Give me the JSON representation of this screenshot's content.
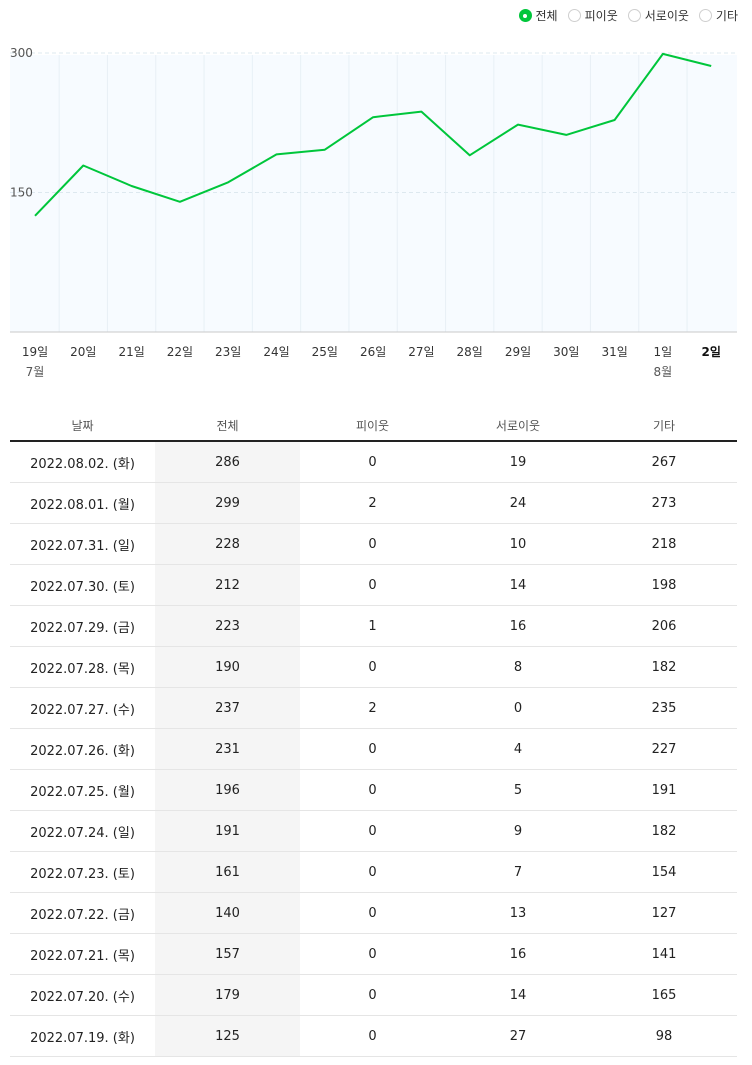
{
  "legend": {
    "items": [
      {
        "label": "전체",
        "checked": true
      },
      {
        "label": "피이웃",
        "checked": false
      },
      {
        "label": "서로이웃",
        "checked": false
      },
      {
        "label": "기타",
        "checked": false
      }
    ]
  },
  "colors": {
    "line": "#00c63b",
    "accent": "#00c63b"
  },
  "chart_data": {
    "type": "line",
    "title": "",
    "xlabel": "",
    "ylabel": "",
    "categories": [
      "19일",
      "20일",
      "21일",
      "22일",
      "23일",
      "24일",
      "25일",
      "26일",
      "27일",
      "28일",
      "29일",
      "30일",
      "31일",
      "1일",
      "2일"
    ],
    "month_labels": [
      {
        "index": 0,
        "label": "7월"
      },
      {
        "index": 13,
        "label": "8월"
      }
    ],
    "current_index": 14,
    "y_ticks": [
      150,
      300
    ],
    "ylim": [
      0,
      314
    ],
    "series": [
      {
        "name": "전체",
        "values": [
          125,
          179,
          157,
          140,
          161,
          191,
          196,
          231,
          237,
          190,
          223,
          212,
          228,
          299,
          286
        ]
      }
    ]
  },
  "table": {
    "headers": [
      "날짜",
      "전체",
      "피이웃",
      "서로이웃",
      "기타"
    ],
    "rows": [
      [
        "2022.08.02. (화)",
        "286",
        "0",
        "19",
        "267"
      ],
      [
        "2022.08.01. (월)",
        "299",
        "2",
        "24",
        "273"
      ],
      [
        "2022.07.31. (일)",
        "228",
        "0",
        "10",
        "218"
      ],
      [
        "2022.07.30. (토)",
        "212",
        "0",
        "14",
        "198"
      ],
      [
        "2022.07.29. (금)",
        "223",
        "1",
        "16",
        "206"
      ],
      [
        "2022.07.28. (목)",
        "190",
        "0",
        "8",
        "182"
      ],
      [
        "2022.07.27. (수)",
        "237",
        "2",
        "0",
        "235"
      ],
      [
        "2022.07.26. (화)",
        "231",
        "0",
        "4",
        "227"
      ],
      [
        "2022.07.25. (월)",
        "196",
        "0",
        "5",
        "191"
      ],
      [
        "2022.07.24. (일)",
        "191",
        "0",
        "9",
        "182"
      ],
      [
        "2022.07.23. (토)",
        "161",
        "0",
        "7",
        "154"
      ],
      [
        "2022.07.22. (금)",
        "140",
        "0",
        "13",
        "127"
      ],
      [
        "2022.07.21. (목)",
        "157",
        "0",
        "16",
        "141"
      ],
      [
        "2022.07.20. (수)",
        "179",
        "0",
        "14",
        "165"
      ],
      [
        "2022.07.19. (화)",
        "125",
        "0",
        "27",
        "98"
      ]
    ]
  }
}
